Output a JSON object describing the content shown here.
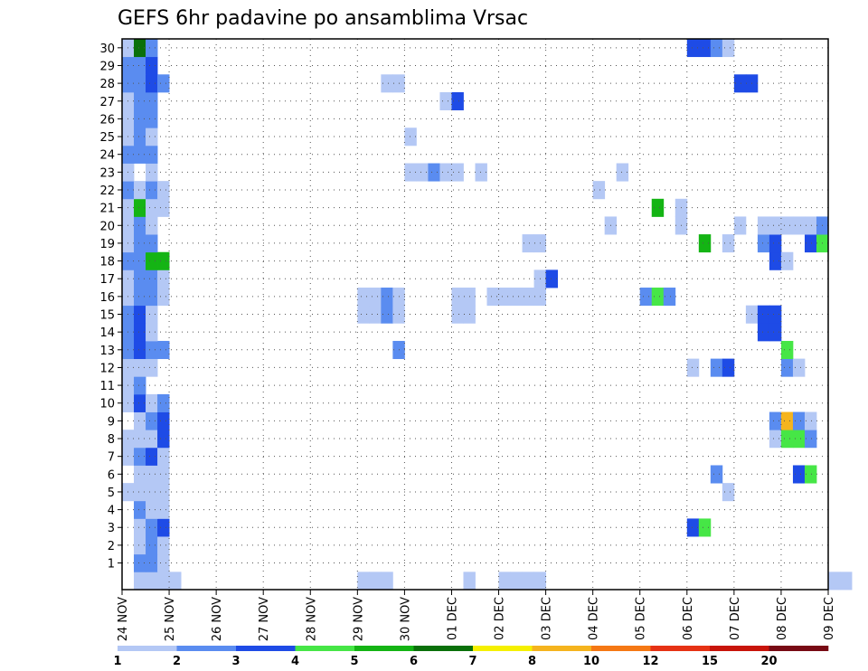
{
  "chart_data": {
    "type": "heatmap",
    "title": "GEFS 6hr padavine po ansamblima Vrsac",
    "x_tick_labels": [
      "24 NOV",
      "25 NOV",
      "26 NOV",
      "27 NOV",
      "28 NOV",
      "29 NOV",
      "30 NOV",
      "01 DEC",
      "02 DEC",
      "03 DEC",
      "04 DEC",
      "05 DEC",
      "06 DEC",
      "07 DEC",
      "08 DEC",
      "09 DEC"
    ],
    "y_tick_labels": [
      "1",
      "2",
      "3",
      "4",
      "5",
      "6",
      "7",
      "8",
      "9",
      "10",
      "11",
      "12",
      "13",
      "14",
      "15",
      "16",
      "17",
      "18",
      "19",
      "20",
      "21",
      "22",
      "23",
      "24",
      "25",
      "26",
      "27",
      "28",
      "29",
      "30"
    ],
    "x_unit": "day index from 24 NOV (4 steps of 6 h per day)",
    "x_range": [
      0,
      15
    ],
    "y_range": [
      0,
      30
    ],
    "grid": "dotted",
    "colorbar": {
      "levels": [
        1,
        2,
        3,
        4,
        5,
        6,
        7,
        8,
        10,
        12,
        15,
        20
      ],
      "tick_labels": [
        "1",
        "2",
        "3",
        "4",
        "5",
        "6",
        "7",
        "8",
        "10",
        "12",
        "15",
        "20"
      ],
      "colors": [
        "#b4c8f5",
        "#5a8cf0",
        "#1e4be6",
        "#46e646",
        "#14b414",
        "#0a700a",
        "#f5f000",
        "#f5b41e",
        "#f57814",
        "#e63214",
        "#c8140a",
        "#780a14"
      ]
    },
    "cells": [
      {
        "m": 0,
        "t": 1,
        "c": 0
      },
      {
        "m": 0,
        "t": 2,
        "c": 0
      },
      {
        "m": 0,
        "t": 3,
        "c": 0
      },
      {
        "m": 0,
        "t": 4,
        "c": 0
      },
      {
        "m": 0,
        "t": 20,
        "c": 0
      },
      {
        "m": 0,
        "t": 21,
        "c": 0
      },
      {
        "m": 0,
        "t": 22,
        "c": 0
      },
      {
        "m": 0,
        "t": 29,
        "c": 0
      },
      {
        "m": 0,
        "t": 60,
        "c": 0
      },
      {
        "m": 0,
        "t": 61,
        "c": 0
      },
      {
        "m": 0,
        "t": 32,
        "c": 0
      },
      {
        "m": 0,
        "t": 33,
        "c": 0
      },
      {
        "m": 0,
        "t": 34,
        "c": 0
      },
      {
        "m": 0,
        "t": 35,
        "c": 0
      },
      {
        "m": 1,
        "t": 1,
        "c": 1
      },
      {
        "m": 1,
        "t": 2,
        "c": 1
      },
      {
        "m": 1,
        "t": 3,
        "c": 0
      },
      {
        "m": 2,
        "t": 1,
        "c": 0
      },
      {
        "m": 2,
        "t": 2,
        "c": 1
      },
      {
        "m": 2,
        "t": 3,
        "c": 0
      },
      {
        "m": 3,
        "t": 1,
        "c": 0
      },
      {
        "m": 3,
        "t": 2,
        "c": 1
      },
      {
        "m": 3,
        "t": 3,
        "c": 2
      },
      {
        "m": 3,
        "t": 48,
        "c": 2
      },
      {
        "m": 3,
        "t": 49,
        "c": 3
      },
      {
        "m": 4,
        "t": 1,
        "c": 1
      },
      {
        "m": 4,
        "t": 2,
        "c": 0
      },
      {
        "m": 4,
        "t": 3,
        "c": 0
      },
      {
        "m": 5,
        "t": 0,
        "c": 0
      },
      {
        "m": 5,
        "t": 1,
        "c": 0
      },
      {
        "m": 5,
        "t": 2,
        "c": 0
      },
      {
        "m": 5,
        "t": 3,
        "c": 0
      },
      {
        "m": 5,
        "t": 51,
        "c": 0
      },
      {
        "m": 6,
        "t": 1,
        "c": 0
      },
      {
        "m": 6,
        "t": 2,
        "c": 0
      },
      {
        "m": 6,
        "t": 3,
        "c": 0
      },
      {
        "m": 6,
        "t": 50,
        "c": 1
      },
      {
        "m": 6,
        "t": 57,
        "c": 2
      },
      {
        "m": 6,
        "t": 58,
        "c": 3
      },
      {
        "m": 7,
        "t": 0,
        "c": 0
      },
      {
        "m": 7,
        "t": 1,
        "c": 1
      },
      {
        "m": 7,
        "t": 2,
        "c": 2
      },
      {
        "m": 7,
        "t": 3,
        "c": 0
      },
      {
        "m": 8,
        "t": 0,
        "c": 0
      },
      {
        "m": 8,
        "t": 1,
        "c": 0
      },
      {
        "m": 8,
        "t": 2,
        "c": 0
      },
      {
        "m": 8,
        "t": 3,
        "c": 2
      },
      {
        "m": 8,
        "t": 55,
        "c": 0
      },
      {
        "m": 8,
        "t": 56,
        "c": 3
      },
      {
        "m": 8,
        "t": 57,
        "c": 3
      },
      {
        "m": 8,
        "t": 58,
        "c": 1
      },
      {
        "m": 9,
        "t": 1,
        "c": 0
      },
      {
        "m": 9,
        "t": 2,
        "c": 1
      },
      {
        "m": 9,
        "t": 3,
        "c": 2
      },
      {
        "m": 9,
        "t": 55,
        "c": 1
      },
      {
        "m": 9,
        "t": 56,
        "c": 7
      },
      {
        "m": 9,
        "t": 57,
        "c": 1
      },
      {
        "m": 9,
        "t": 58,
        "c": 0
      },
      {
        "m": 10,
        "t": 0,
        "c": 0
      },
      {
        "m": 10,
        "t": 1,
        "c": 2
      },
      {
        "m": 10,
        "t": 2,
        "c": 0
      },
      {
        "m": 10,
        "t": 3,
        "c": 1
      },
      {
        "m": 11,
        "t": 0,
        "c": 0
      },
      {
        "m": 11,
        "t": 1,
        "c": 1
      },
      {
        "m": 12,
        "t": 0,
        "c": 0
      },
      {
        "m": 12,
        "t": 1,
        "c": 0
      },
      {
        "m": 12,
        "t": 2,
        "c": 0
      },
      {
        "m": 12,
        "t": 48,
        "c": 0
      },
      {
        "m": 12,
        "t": 50,
        "c": 1
      },
      {
        "m": 12,
        "t": 51,
        "c": 2
      },
      {
        "m": 12,
        "t": 56,
        "c": 1
      },
      {
        "m": 12,
        "t": 57,
        "c": 0
      },
      {
        "m": 13,
        "t": 0,
        "c": 1
      },
      {
        "m": 13,
        "t": 1,
        "c": 2
      },
      {
        "m": 13,
        "t": 2,
        "c": 1
      },
      {
        "m": 13,
        "t": 3,
        "c": 1
      },
      {
        "m": 13,
        "t": 23,
        "c": 1
      },
      {
        "m": 13,
        "t": 56,
        "c": 3
      },
      {
        "m": 14,
        "t": 0,
        "c": 1
      },
      {
        "m": 14,
        "t": 1,
        "c": 2
      },
      {
        "m": 14,
        "t": 2,
        "c": 0
      },
      {
        "m": 14,
        "t": 54,
        "c": 2
      },
      {
        "m": 14,
        "t": 55,
        "c": 2
      },
      {
        "m": 15,
        "t": 0,
        "c": 1
      },
      {
        "m": 15,
        "t": 1,
        "c": 2
      },
      {
        "m": 15,
        "t": 2,
        "c": 0
      },
      {
        "m": 15,
        "t": 20,
        "c": 0
      },
      {
        "m": 15,
        "t": 21,
        "c": 0
      },
      {
        "m": 15,
        "t": 22,
        "c": 1
      },
      {
        "m": 15,
        "t": 23,
        "c": 0
      },
      {
        "m": 15,
        "t": 28,
        "c": 0
      },
      {
        "m": 15,
        "t": 29,
        "c": 0
      },
      {
        "m": 15,
        "t": 53,
        "c": 0
      },
      {
        "m": 15,
        "t": 54,
        "c": 2
      },
      {
        "m": 15,
        "t": 55,
        "c": 2
      },
      {
        "m": 16,
        "t": 0,
        "c": 0
      },
      {
        "m": 16,
        "t": 1,
        "c": 1
      },
      {
        "m": 16,
        "t": 2,
        "c": 1
      },
      {
        "m": 16,
        "t": 3,
        "c": 0
      },
      {
        "m": 16,
        "t": 20,
        "c": 0
      },
      {
        "m": 16,
        "t": 21,
        "c": 0
      },
      {
        "m": 16,
        "t": 22,
        "c": 1
      },
      {
        "m": 16,
        "t": 23,
        "c": 0
      },
      {
        "m": 16,
        "t": 28,
        "c": 0
      },
      {
        "m": 16,
        "t": 29,
        "c": 0
      },
      {
        "m": 16,
        "t": 31,
        "c": 0
      },
      {
        "m": 16,
        "t": 32,
        "c": 0
      },
      {
        "m": 16,
        "t": 33,
        "c": 0
      },
      {
        "m": 16,
        "t": 34,
        "c": 0
      },
      {
        "m": 16,
        "t": 35,
        "c": 0
      },
      {
        "m": 16,
        "t": 44,
        "c": 1
      },
      {
        "m": 16,
        "t": 45,
        "c": 3
      },
      {
        "m": 16,
        "t": 46,
        "c": 1
      },
      {
        "m": 17,
        "t": 0,
        "c": 0
      },
      {
        "m": 17,
        "t": 1,
        "c": 1
      },
      {
        "m": 17,
        "t": 2,
        "c": 1
      },
      {
        "m": 17,
        "t": 3,
        "c": 0
      },
      {
        "m": 17,
        "t": 35,
        "c": 0
      },
      {
        "m": 17,
        "t": 36,
        "c": 2
      },
      {
        "m": 18,
        "t": 0,
        "c": 1
      },
      {
        "m": 18,
        "t": 1,
        "c": 1
      },
      {
        "m": 18,
        "t": 2,
        "c": 4
      },
      {
        "m": 18,
        "t": 3,
        "c": 4
      },
      {
        "m": 18,
        "t": 55,
        "c": 2
      },
      {
        "m": 18,
        "t": 56,
        "c": 0
      },
      {
        "m": 19,
        "t": 0,
        "c": 0
      },
      {
        "m": 19,
        "t": 1,
        "c": 1
      },
      {
        "m": 19,
        "t": 2,
        "c": 1
      },
      {
        "m": 19,
        "t": 34,
        "c": 0
      },
      {
        "m": 19,
        "t": 35,
        "c": 0
      },
      {
        "m": 19,
        "t": 49,
        "c": 4
      },
      {
        "m": 19,
        "t": 51,
        "c": 0
      },
      {
        "m": 19,
        "t": 54,
        "c": 1
      },
      {
        "m": 19,
        "t": 55,
        "c": 2
      },
      {
        "m": 19,
        "t": 58,
        "c": 2
      },
      {
        "m": 19,
        "t": 59,
        "c": 3
      },
      {
        "m": 20,
        "t": 0,
        "c": 0
      },
      {
        "m": 20,
        "t": 1,
        "c": 1
      },
      {
        "m": 20,
        "t": 2,
        "c": 0
      },
      {
        "m": 20,
        "t": 41,
        "c": 0
      },
      {
        "m": 20,
        "t": 47,
        "c": 0
      },
      {
        "m": 20,
        "t": 52,
        "c": 0
      },
      {
        "m": 20,
        "t": 54,
        "c": 0
      },
      {
        "m": 20,
        "t": 55,
        "c": 0
      },
      {
        "m": 20,
        "t": 56,
        "c": 0
      },
      {
        "m": 20,
        "t": 57,
        "c": 0
      },
      {
        "m": 20,
        "t": 58,
        "c": 0
      },
      {
        "m": 20,
        "t": 59,
        "c": 1
      },
      {
        "m": 21,
        "t": 0,
        "c": 0
      },
      {
        "m": 21,
        "t": 1,
        "c": 4
      },
      {
        "m": 21,
        "t": 2,
        "c": 0
      },
      {
        "m": 21,
        "t": 3,
        "c": 0
      },
      {
        "m": 21,
        "t": 45,
        "c": 4
      },
      {
        "m": 21,
        "t": 47,
        "c": 0
      },
      {
        "m": 22,
        "t": 0,
        "c": 1
      },
      {
        "m": 22,
        "t": 1,
        "c": 0
      },
      {
        "m": 22,
        "t": 2,
        "c": 1
      },
      {
        "m": 22,
        "t": 3,
        "c": 0
      },
      {
        "m": 22,
        "t": 40,
        "c": 0
      },
      {
        "m": 23,
        "t": 0,
        "c": 0
      },
      {
        "m": 23,
        "t": 2,
        "c": 0
      },
      {
        "m": 23,
        "t": 24,
        "c": 0
      },
      {
        "m": 23,
        "t": 25,
        "c": 0
      },
      {
        "m": 23,
        "t": 26,
        "c": 1
      },
      {
        "m": 23,
        "t": 27,
        "c": 0
      },
      {
        "m": 23,
        "t": 28,
        "c": 0
      },
      {
        "m": 23,
        "t": 30,
        "c": 0
      },
      {
        "m": 23,
        "t": 42,
        "c": 0
      },
      {
        "m": 24,
        "t": 0,
        "c": 1
      },
      {
        "m": 24,
        "t": 1,
        "c": 1
      },
      {
        "m": 24,
        "t": 2,
        "c": 1
      },
      {
        "m": 25,
        "t": 0,
        "c": 0
      },
      {
        "m": 25,
        "t": 1,
        "c": 1
      },
      {
        "m": 25,
        "t": 2,
        "c": 0
      },
      {
        "m": 25,
        "t": 24,
        "c": 0
      },
      {
        "m": 26,
        "t": 0,
        "c": 0
      },
      {
        "m": 26,
        "t": 1,
        "c": 1
      },
      {
        "m": 26,
        "t": 2,
        "c": 1
      },
      {
        "m": 27,
        "t": 0,
        "c": 0
      },
      {
        "m": 27,
        "t": 1,
        "c": 1
      },
      {
        "m": 27,
        "t": 2,
        "c": 1
      },
      {
        "m": 27,
        "t": 27,
        "c": 0
      },
      {
        "m": 27,
        "t": 28,
        "c": 2
      },
      {
        "m": 28,
        "t": 0,
        "c": 1
      },
      {
        "m": 28,
        "t": 1,
        "c": 1
      },
      {
        "m": 28,
        "t": 2,
        "c": 2
      },
      {
        "m": 28,
        "t": 3,
        "c": 1
      },
      {
        "m": 28,
        "t": 22,
        "c": 0
      },
      {
        "m": 28,
        "t": 23,
        "c": 0
      },
      {
        "m": 28,
        "t": 52,
        "c": 2
      },
      {
        "m": 28,
        "t": 53,
        "c": 2
      },
      {
        "m": 29,
        "t": 0,
        "c": 1
      },
      {
        "m": 29,
        "t": 1,
        "c": 1
      },
      {
        "m": 29,
        "t": 2,
        "c": 2
      },
      {
        "m": 30,
        "t": 0,
        "c": 0
      },
      {
        "m": 30,
        "t": 1,
        "c": 5
      },
      {
        "m": 30,
        "t": 2,
        "c": 1
      },
      {
        "m": 30,
        "t": 48,
        "c": 2
      },
      {
        "m": 30,
        "t": 49,
        "c": 2
      },
      {
        "m": 30,
        "t": 50,
        "c": 1
      },
      {
        "m": 30,
        "t": 51,
        "c": 0
      }
    ]
  }
}
